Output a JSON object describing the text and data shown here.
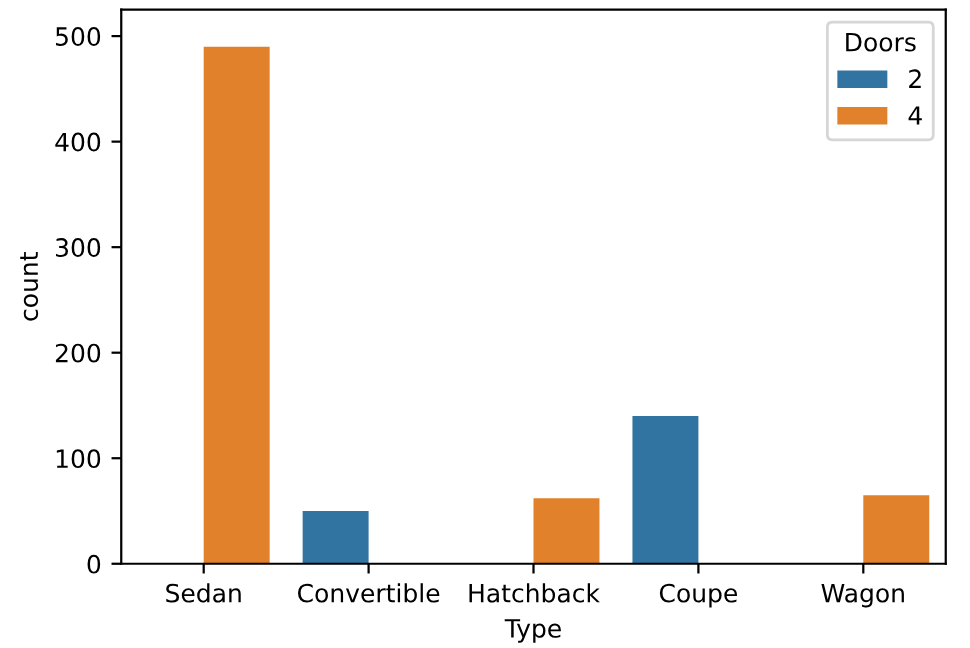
{
  "chart_data": {
    "type": "bar",
    "xlabel": "Type",
    "ylabel": "count",
    "legend_title": "Doors",
    "categories": [
      "Sedan",
      "Convertible",
      "Hatchback",
      "Coupe",
      "Wagon"
    ],
    "series": [
      {
        "name": "2",
        "color": "#3274a1",
        "values": [
          null,
          50,
          null,
          140,
          null
        ]
      },
      {
        "name": "4",
        "color": "#e1812c",
        "values": [
          490,
          null,
          62,
          null,
          65
        ]
      }
    ],
    "ylim": [
      0,
      525
    ],
    "yticks": [
      0,
      100,
      200,
      300,
      400,
      500
    ],
    "grid": false,
    "legend": "top right"
  }
}
